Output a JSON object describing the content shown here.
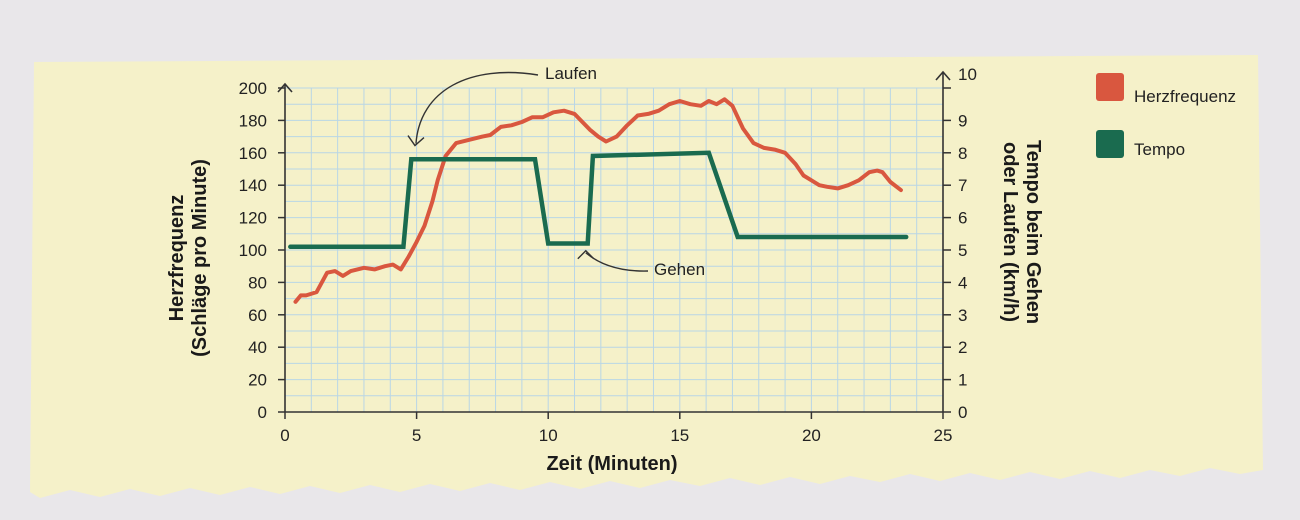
{
  "chart_data": {
    "type": "line",
    "xlabel": "Zeit (Minuten)",
    "ylabel_left": [
      "Herzfrequenz",
      "(Schläge pro Minute)"
    ],
    "ylabel_right": [
      "Tempo beim Gehen",
      "oder Laufen (km/h)"
    ],
    "xlim": [
      0,
      25
    ],
    "ylim_left": [
      0,
      200
    ],
    "ylim_right": [
      0,
      10
    ],
    "x_ticks": [
      "0",
      "5",
      "10",
      "15",
      "20",
      "25"
    ],
    "y_left_ticks": [
      "0",
      "20",
      "40",
      "60",
      "80",
      "100",
      "120",
      "140",
      "160",
      "180",
      "200"
    ],
    "y_right_ticks": [
      "0",
      "1",
      "2",
      "3",
      "4",
      "5",
      "6",
      "7",
      "8",
      "9",
      "10"
    ],
    "grid": true,
    "legend_position": "right",
    "series": [
      {
        "name": "Herzfrequenz",
        "axis": "left",
        "color": "#d9573f",
        "x": [
          0.4,
          0.6,
          0.8,
          1.2,
          1.6,
          1.9,
          2.2,
          2.5,
          3.0,
          3.4,
          3.8,
          4.1,
          4.4,
          4.7,
          5.0,
          5.3,
          5.6,
          5.8,
          6.1,
          6.5,
          7.0,
          7.5,
          7.8,
          8.2,
          8.6,
          9.0,
          9.4,
          9.8,
          10.2,
          10.6,
          11.0,
          11.3,
          11.6,
          11.9,
          12.2,
          12.6,
          13.0,
          13.4,
          13.8,
          14.2,
          14.6,
          15.0,
          15.4,
          15.8,
          16.1,
          16.4,
          16.7,
          17.0,
          17.4,
          17.8,
          18.2,
          18.6,
          19.0,
          19.4,
          19.7,
          20.0,
          20.3,
          20.6,
          21.0,
          21.4,
          21.8,
          22.2,
          22.5,
          22.7,
          23.0,
          23.4
        ],
        "y": [
          68,
          72,
          72,
          74,
          86,
          87,
          84,
          87,
          89,
          88,
          90,
          91,
          88,
          96,
          105,
          115,
          130,
          143,
          158,
          166,
          168,
          170,
          171,
          176,
          177,
          179,
          182,
          182,
          185,
          186,
          184,
          179,
          174,
          170,
          167,
          170,
          177,
          183,
          184,
          186,
          190,
          192,
          190,
          189,
          192,
          190,
          193,
          189,
          175,
          166,
          163,
          162,
          160,
          153,
          146,
          143,
          140,
          139,
          138,
          140,
          143,
          148,
          149,
          148,
          142,
          137
        ]
      },
      {
        "name": "Tempo",
        "axis": "right",
        "color": "#1a6b4f",
        "x": [
          0.2,
          4.5,
          4.8,
          9.5,
          10.0,
          11.5,
          11.7,
          16.1,
          17.2,
          23.6
        ],
        "y": [
          5.1,
          5.1,
          7.8,
          7.8,
          5.2,
          5.2,
          7.9,
          8.0,
          5.4,
          5.4
        ]
      }
    ],
    "annotations": [
      {
        "text": "Laufen",
        "x": 4.9,
        "y_right": 8.1
      },
      {
        "text": "Gehen",
        "x": 11.2,
        "y_right": 5.1
      }
    ]
  }
}
